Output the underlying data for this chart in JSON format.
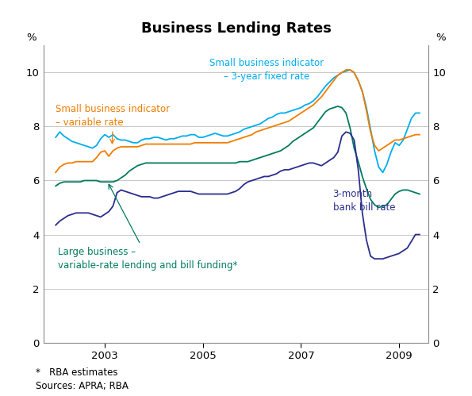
{
  "title": "Business Lending Rates",
  "ylabel_left": "%",
  "ylabel_right": "%",
  "ylim": [
    0,
    11
  ],
  "yticks": [
    0,
    2,
    4,
    6,
    8,
    10
  ],
  "xticks": [
    2003,
    2005,
    2007,
    2009
  ],
  "xlim": [
    2001.75,
    2009.6
  ],
  "footnote_line1": "*   RBA estimates",
  "footnote_line2": "Sources: APRA; RBA",
  "background_color": "#ffffff",
  "grid_color": "#c8c8c8",
  "colors": {
    "cyan": "#00ADEF",
    "orange": "#F07D00",
    "green": "#007B5E",
    "navy": "#2B2D8E"
  },
  "series": {
    "cyan": {
      "dates": [
        2002.0,
        2002.083,
        2002.167,
        2002.25,
        2002.333,
        2002.417,
        2002.5,
        2002.583,
        2002.667,
        2002.75,
        2002.833,
        2002.917,
        2003.0,
        2003.083,
        2003.167,
        2003.25,
        2003.333,
        2003.417,
        2003.5,
        2003.583,
        2003.667,
        2003.75,
        2003.833,
        2003.917,
        2004.0,
        2004.083,
        2004.167,
        2004.25,
        2004.333,
        2004.417,
        2004.5,
        2004.583,
        2004.667,
        2004.75,
        2004.833,
        2004.917,
        2005.0,
        2005.083,
        2005.167,
        2005.25,
        2005.333,
        2005.417,
        2005.5,
        2005.583,
        2005.667,
        2005.75,
        2005.833,
        2005.917,
        2006.0,
        2006.083,
        2006.167,
        2006.25,
        2006.333,
        2006.417,
        2006.5,
        2006.583,
        2006.667,
        2006.75,
        2006.833,
        2006.917,
        2007.0,
        2007.083,
        2007.167,
        2007.25,
        2007.333,
        2007.417,
        2007.5,
        2007.583,
        2007.667,
        2007.75,
        2007.833,
        2007.917,
        2008.0,
        2008.083,
        2008.167,
        2008.25,
        2008.333,
        2008.417,
        2008.5,
        2008.583,
        2008.667,
        2008.75,
        2008.833,
        2008.917,
        2009.0,
        2009.083,
        2009.167,
        2009.25,
        2009.333,
        2009.417
      ],
      "values": [
        7.6,
        7.8,
        7.65,
        7.55,
        7.45,
        7.4,
        7.35,
        7.3,
        7.25,
        7.2,
        7.3,
        7.55,
        7.7,
        7.6,
        7.7,
        7.55,
        7.5,
        7.5,
        7.45,
        7.4,
        7.4,
        7.5,
        7.55,
        7.55,
        7.6,
        7.6,
        7.55,
        7.5,
        7.55,
        7.55,
        7.6,
        7.65,
        7.65,
        7.7,
        7.7,
        7.6,
        7.6,
        7.65,
        7.7,
        7.75,
        7.7,
        7.65,
        7.65,
        7.7,
        7.75,
        7.8,
        7.9,
        7.95,
        8.0,
        8.05,
        8.1,
        8.2,
        8.3,
        8.35,
        8.45,
        8.5,
        8.5,
        8.55,
        8.6,
        8.65,
        8.7,
        8.8,
        8.85,
        8.95,
        9.1,
        9.3,
        9.5,
        9.65,
        9.8,
        9.9,
        10.0,
        10.05,
        10.1,
        10.0,
        9.7,
        9.3,
        8.7,
        7.9,
        7.1,
        6.5,
        6.3,
        6.6,
        7.05,
        7.4,
        7.3,
        7.5,
        7.9,
        8.3,
        8.5,
        8.5
      ]
    },
    "orange": {
      "dates": [
        2002.0,
        2002.083,
        2002.167,
        2002.25,
        2002.333,
        2002.417,
        2002.5,
        2002.583,
        2002.667,
        2002.75,
        2002.833,
        2002.917,
        2003.0,
        2003.083,
        2003.167,
        2003.25,
        2003.333,
        2003.417,
        2003.5,
        2003.583,
        2003.667,
        2003.75,
        2003.833,
        2003.917,
        2004.0,
        2004.083,
        2004.167,
        2004.25,
        2004.333,
        2004.417,
        2004.5,
        2004.583,
        2004.667,
        2004.75,
        2004.833,
        2004.917,
        2005.0,
        2005.083,
        2005.167,
        2005.25,
        2005.333,
        2005.417,
        2005.5,
        2005.583,
        2005.667,
        2005.75,
        2005.833,
        2005.917,
        2006.0,
        2006.083,
        2006.167,
        2006.25,
        2006.333,
        2006.417,
        2006.5,
        2006.583,
        2006.667,
        2006.75,
        2006.833,
        2006.917,
        2007.0,
        2007.083,
        2007.167,
        2007.25,
        2007.333,
        2007.417,
        2007.5,
        2007.583,
        2007.667,
        2007.75,
        2007.833,
        2007.917,
        2008.0,
        2008.083,
        2008.167,
        2008.25,
        2008.333,
        2008.417,
        2008.5,
        2008.583,
        2008.667,
        2008.75,
        2008.833,
        2008.917,
        2009.0,
        2009.083,
        2009.167,
        2009.25,
        2009.333,
        2009.417
      ],
      "values": [
        6.3,
        6.5,
        6.6,
        6.65,
        6.65,
        6.7,
        6.7,
        6.7,
        6.7,
        6.7,
        6.85,
        7.05,
        7.1,
        6.9,
        7.1,
        7.2,
        7.25,
        7.25,
        7.25,
        7.25,
        7.25,
        7.3,
        7.35,
        7.35,
        7.35,
        7.35,
        7.35,
        7.35,
        7.35,
        7.35,
        7.35,
        7.35,
        7.35,
        7.35,
        7.4,
        7.4,
        7.4,
        7.4,
        7.4,
        7.4,
        7.4,
        7.4,
        7.4,
        7.45,
        7.5,
        7.55,
        7.6,
        7.65,
        7.7,
        7.8,
        7.85,
        7.9,
        7.95,
        8.0,
        8.05,
        8.1,
        8.15,
        8.2,
        8.3,
        8.4,
        8.5,
        8.6,
        8.7,
        8.8,
        8.95,
        9.1,
        9.3,
        9.5,
        9.7,
        9.9,
        10.0,
        10.1,
        10.1,
        10.0,
        9.7,
        9.3,
        8.6,
        7.8,
        7.3,
        7.1,
        7.2,
        7.3,
        7.4,
        7.5,
        7.5,
        7.55,
        7.6,
        7.65,
        7.7,
        7.7
      ]
    },
    "green": {
      "dates": [
        2002.0,
        2002.083,
        2002.167,
        2002.25,
        2002.333,
        2002.417,
        2002.5,
        2002.583,
        2002.667,
        2002.75,
        2002.833,
        2002.917,
        2003.0,
        2003.083,
        2003.167,
        2003.25,
        2003.333,
        2003.417,
        2003.5,
        2003.583,
        2003.667,
        2003.75,
        2003.833,
        2003.917,
        2004.0,
        2004.083,
        2004.167,
        2004.25,
        2004.333,
        2004.417,
        2004.5,
        2004.583,
        2004.667,
        2004.75,
        2004.833,
        2004.917,
        2005.0,
        2005.083,
        2005.167,
        2005.25,
        2005.333,
        2005.417,
        2005.5,
        2005.583,
        2005.667,
        2005.75,
        2005.833,
        2005.917,
        2006.0,
        2006.083,
        2006.167,
        2006.25,
        2006.333,
        2006.417,
        2006.5,
        2006.583,
        2006.667,
        2006.75,
        2006.833,
        2006.917,
        2007.0,
        2007.083,
        2007.167,
        2007.25,
        2007.333,
        2007.417,
        2007.5,
        2007.583,
        2007.667,
        2007.75,
        2007.833,
        2007.917,
        2008.0,
        2008.083,
        2008.167,
        2008.25,
        2008.333,
        2008.417,
        2008.5,
        2008.583,
        2008.667,
        2008.75,
        2008.833,
        2008.917,
        2009.0,
        2009.083,
        2009.167,
        2009.25,
        2009.333,
        2009.417
      ],
      "values": [
        5.8,
        5.9,
        5.95,
        5.95,
        5.95,
        5.95,
        5.95,
        6.0,
        6.0,
        6.0,
        6.0,
        5.95,
        5.95,
        5.95,
        5.95,
        6.0,
        6.1,
        6.2,
        6.35,
        6.45,
        6.55,
        6.6,
        6.65,
        6.65,
        6.65,
        6.65,
        6.65,
        6.65,
        6.65,
        6.65,
        6.65,
        6.65,
        6.65,
        6.65,
        6.65,
        6.65,
        6.65,
        6.65,
        6.65,
        6.65,
        6.65,
        6.65,
        6.65,
        6.65,
        6.65,
        6.7,
        6.7,
        6.7,
        6.75,
        6.8,
        6.85,
        6.9,
        6.95,
        7.0,
        7.05,
        7.1,
        7.2,
        7.3,
        7.45,
        7.55,
        7.65,
        7.75,
        7.85,
        7.95,
        8.15,
        8.35,
        8.55,
        8.65,
        8.7,
        8.75,
        8.7,
        8.5,
        7.95,
        7.2,
        6.7,
        6.15,
        5.7,
        5.3,
        5.1,
        5.0,
        5.05,
        5.1,
        5.3,
        5.5,
        5.6,
        5.65,
        5.65,
        5.6,
        5.55,
        5.5
      ]
    },
    "navy": {
      "dates": [
        2002.0,
        2002.083,
        2002.167,
        2002.25,
        2002.333,
        2002.417,
        2002.5,
        2002.583,
        2002.667,
        2002.75,
        2002.833,
        2002.917,
        2003.0,
        2003.083,
        2003.167,
        2003.25,
        2003.333,
        2003.417,
        2003.5,
        2003.583,
        2003.667,
        2003.75,
        2003.833,
        2003.917,
        2004.0,
        2004.083,
        2004.167,
        2004.25,
        2004.333,
        2004.417,
        2004.5,
        2004.583,
        2004.667,
        2004.75,
        2004.833,
        2004.917,
        2005.0,
        2005.083,
        2005.167,
        2005.25,
        2005.333,
        2005.417,
        2005.5,
        2005.583,
        2005.667,
        2005.75,
        2005.833,
        2005.917,
        2006.0,
        2006.083,
        2006.167,
        2006.25,
        2006.333,
        2006.417,
        2006.5,
        2006.583,
        2006.667,
        2006.75,
        2006.833,
        2006.917,
        2007.0,
        2007.083,
        2007.167,
        2007.25,
        2007.333,
        2007.417,
        2007.5,
        2007.583,
        2007.667,
        2007.75,
        2007.833,
        2007.917,
        2008.0,
        2008.083,
        2008.167,
        2008.25,
        2008.333,
        2008.417,
        2008.5,
        2008.583,
        2008.667,
        2008.75,
        2008.833,
        2008.917,
        2009.0,
        2009.083,
        2009.167,
        2009.25,
        2009.333,
        2009.417
      ],
      "values": [
        4.35,
        4.5,
        4.6,
        4.7,
        4.75,
        4.8,
        4.8,
        4.8,
        4.8,
        4.75,
        4.7,
        4.65,
        4.75,
        4.85,
        5.05,
        5.55,
        5.65,
        5.6,
        5.55,
        5.5,
        5.45,
        5.4,
        5.4,
        5.4,
        5.35,
        5.35,
        5.4,
        5.45,
        5.5,
        5.55,
        5.6,
        5.6,
        5.6,
        5.6,
        5.55,
        5.5,
        5.5,
        5.5,
        5.5,
        5.5,
        5.5,
        5.5,
        5.5,
        5.55,
        5.6,
        5.7,
        5.85,
        5.95,
        6.0,
        6.05,
        6.1,
        6.15,
        6.15,
        6.2,
        6.25,
        6.35,
        6.4,
        6.4,
        6.45,
        6.5,
        6.55,
        6.6,
        6.65,
        6.65,
        6.6,
        6.55,
        6.65,
        6.75,
        6.85,
        7.05,
        7.65,
        7.8,
        7.75,
        7.5,
        6.4,
        4.8,
        3.8,
        3.2,
        3.1,
        3.1,
        3.1,
        3.15,
        3.2,
        3.25,
        3.3,
        3.4,
        3.5,
        3.75,
        4.0,
        4.0
      ]
    }
  }
}
